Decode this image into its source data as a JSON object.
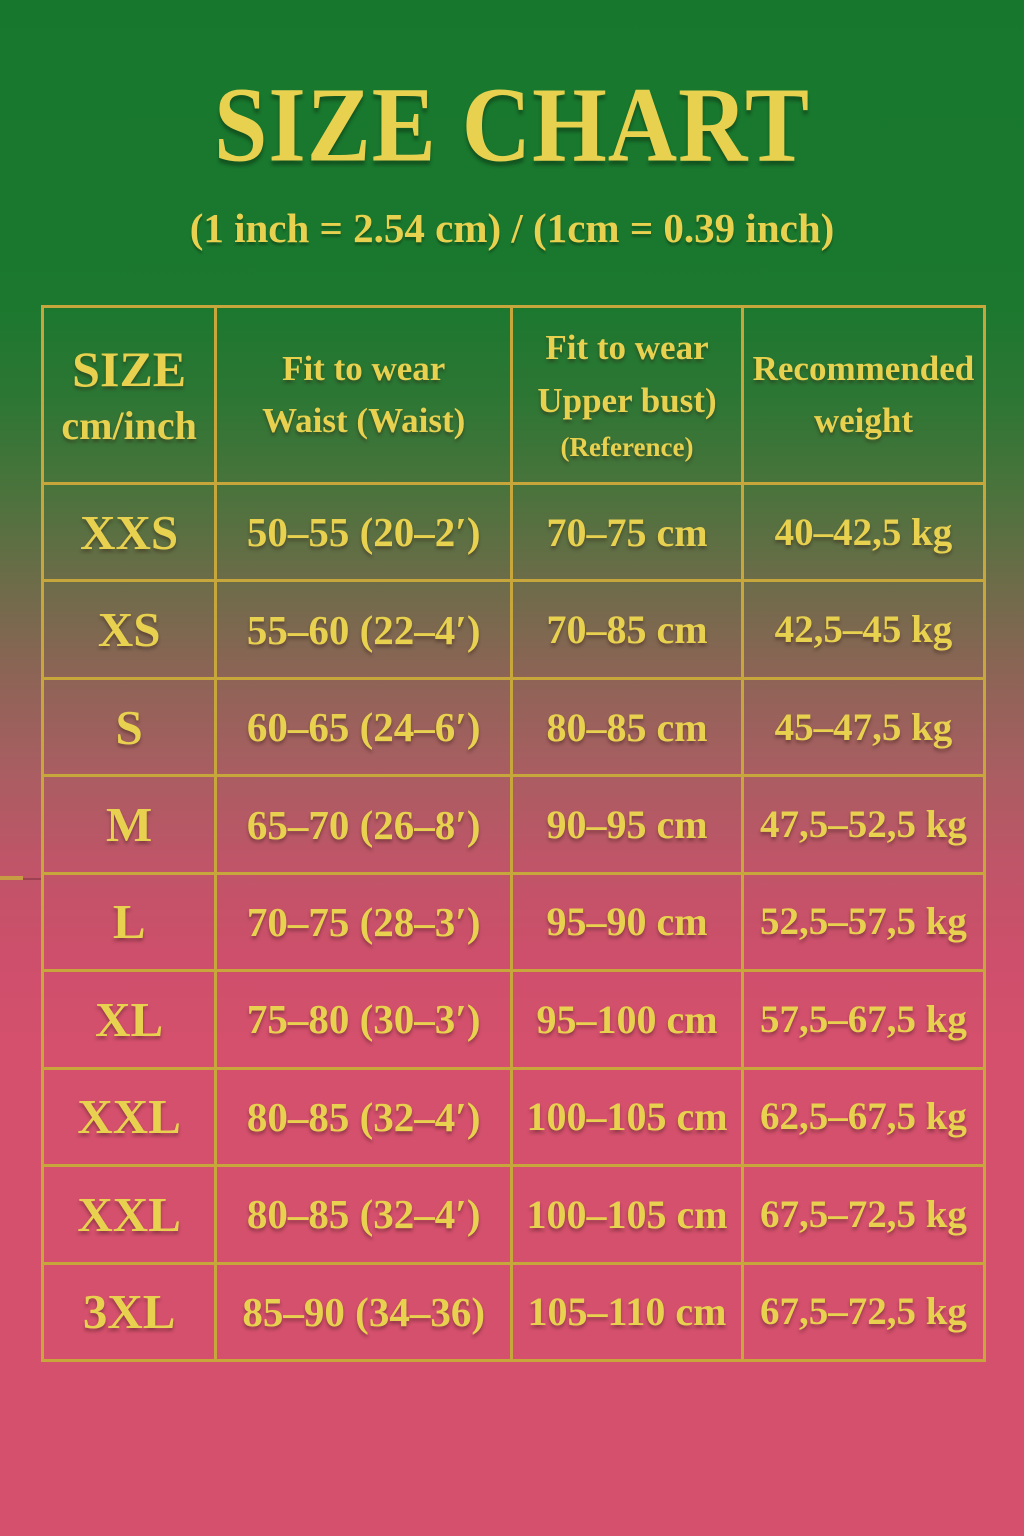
{
  "title": "SIZE CHART",
  "subtitle": "(1 inch = 2.54 cm) / (1cm = 0.39 inch)",
  "colors": {
    "background_top": "#177a2e",
    "background_bottom": "#d5506d",
    "gold_text": "#e9d150",
    "gold_border": "#c7a73c"
  },
  "table": {
    "header": {
      "size_line1": "SIZE",
      "size_line2": "cm/inch",
      "waist_line1": "Fit to wear",
      "waist_line2": "Waist (Waist)",
      "bust_line1": "Fit to wear",
      "bust_line2": "Upper bust)",
      "bust_line3": "(Reference)",
      "weight_line1": "Recommended",
      "weight_line2": "weight"
    }
  },
  "chart_data": {
    "type": "table",
    "columns": [
      "SIZE cm/inch",
      "Fit to wear Waist (Waist)",
      "Fit to wear Upper bust) (Reference)",
      "Recommended weight"
    ],
    "rows": [
      {
        "size": "XXS",
        "waist": "50–55 (20–2′)",
        "bust": "70–75 cm",
        "weight": "40–42,5 kg"
      },
      {
        "size": "XS",
        "waist": "55–60 (22–4′)",
        "bust": "70–85 cm",
        "weight": "42,5–45 kg"
      },
      {
        "size": "S",
        "waist": "60–65 (24–6′)",
        "bust": "80–85 cm",
        "weight": "45–47,5 kg"
      },
      {
        "size": "M",
        "waist": "65–70 (26–8′)",
        "bust": "90–95 cm",
        "weight": "47,5–52,5 kg"
      },
      {
        "size": "L",
        "waist": "70–75 (28–3′)",
        "bust": "95–90 cm",
        "weight": "52,5–57,5 kg"
      },
      {
        "size": "XL",
        "waist": "75–80 (30–3′)",
        "bust": "95–100 cm",
        "weight": "57,5–67,5 kg"
      },
      {
        "size": "XXL",
        "waist": "80–85 (32–4′)",
        "bust": "100–105 cm",
        "weight": "62,5–67,5 kg"
      },
      {
        "size": "XXL",
        "waist": "80–85 (32–4′)",
        "bust": "100–105 cm",
        "weight": "67,5–72,5 kg"
      },
      {
        "size": "3XL",
        "waist": "85–90 (34–36)",
        "bust": "105–110 cm",
        "weight": "67,5–72,5 kg"
      }
    ]
  }
}
